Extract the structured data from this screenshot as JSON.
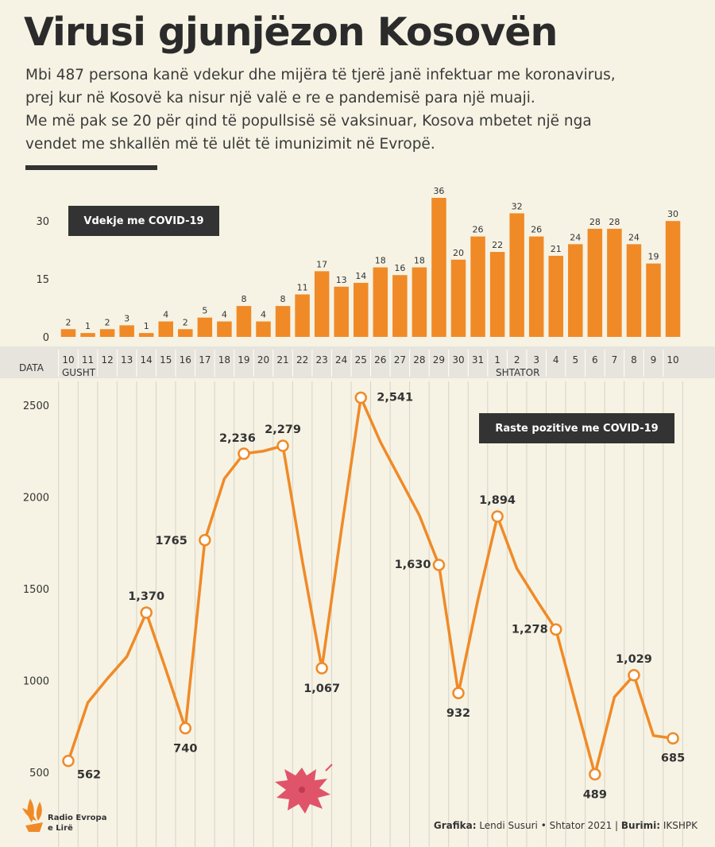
{
  "header": {
    "title": "Virusi gjunjëzon Kosovën",
    "subtitle_lines": [
      "Mbi 487 persona kanë vdekur dhe mijëra të tjerë janë infektuar me koronavirus,",
      "prej kur në Kosovë ka nisur një valë e re e pandemisë para një muaji.",
      "Me më pak se 20 për qind të popullsisë së vaksinuar, Kosova mbetet një nga",
      "vendet me shkallën më të ulët të imunizimit në Evropë."
    ]
  },
  "colors": {
    "orange": "#f08a27",
    "dark": "#333333",
    "axis_band": "#e6e4dc",
    "background": "#f6f3e4"
  },
  "date_axis": {
    "label": "DATA",
    "dates": [
      "10",
      "11",
      "12",
      "13",
      "14",
      "15",
      "16",
      "17",
      "18",
      "19",
      "20",
      "21",
      "22",
      "23",
      "24",
      "25",
      "26",
      "27",
      "28",
      "29",
      "30",
      "31",
      "1",
      "2",
      "3",
      "4",
      "5",
      "6",
      "7",
      "8",
      "9",
      "10"
    ],
    "month_labels": [
      "GUSHT",
      "SHTATOR"
    ]
  },
  "chart_data": [
    {
      "type": "bar",
      "legend": "Vdekje me COVID-19",
      "categories": [
        "10",
        "11",
        "12",
        "13",
        "14",
        "15",
        "16",
        "17",
        "18",
        "19",
        "20",
        "21",
        "22",
        "23",
        "24",
        "25",
        "26",
        "27",
        "28",
        "29",
        "30",
        "31",
        "1",
        "2",
        "3",
        "4",
        "5",
        "6",
        "7",
        "8",
        "9",
        "10"
      ],
      "values": [
        2,
        1,
        2,
        3,
        1,
        4,
        2,
        5,
        4,
        8,
        4,
        8,
        11,
        17,
        13,
        14,
        18,
        16,
        18,
        36,
        20,
        26,
        22,
        32,
        26,
        21,
        24,
        28,
        28,
        24,
        19,
        30
      ],
      "yticks": [
        0,
        15,
        30
      ],
      "ylim": [
        0,
        36
      ],
      "grid": false
    },
    {
      "type": "line",
      "legend": "Raste pozitive me COVID-19",
      "categories": [
        "10",
        "11",
        "12",
        "13",
        "14",
        "15",
        "16",
        "17",
        "18",
        "19",
        "20",
        "21",
        "22",
        "23",
        "24",
        "25",
        "26",
        "27",
        "28",
        "29",
        "30",
        "31",
        "1",
        "2",
        "3",
        "4",
        "5",
        "6",
        "7",
        "8",
        "9",
        "10"
      ],
      "values": [
        562,
        880,
        1010,
        1130,
        1370,
        1060,
        740,
        1765,
        2100,
        2236,
        2250,
        2279,
        1650,
        1067,
        1820,
        2541,
        2300,
        2100,
        1900,
        1630,
        932,
        1440,
        1894,
        1610,
        1440,
        1278,
        880,
        489,
        910,
        1029,
        700,
        685
      ],
      "point_labels": [
        {
          "index": 0,
          "text": "562"
        },
        {
          "index": 4,
          "text": "1,370"
        },
        {
          "index": 6,
          "text": "740"
        },
        {
          "index": 7,
          "text": "1765"
        },
        {
          "index": 9,
          "text": "2,236"
        },
        {
          "index": 11,
          "text": "2,279"
        },
        {
          "index": 13,
          "text": "1,067"
        },
        {
          "index": 15,
          "text": "2,541"
        },
        {
          "index": 19,
          "text": "1,630"
        },
        {
          "index": 20,
          "text": "932"
        },
        {
          "index": 22,
          "text": "1,894"
        },
        {
          "index": 25,
          "text": "1,278"
        },
        {
          "index": 27,
          "text": "489"
        },
        {
          "index": 29,
          "text": "1,029"
        },
        {
          "index": 31,
          "text": "685"
        }
      ],
      "yticks": [
        500,
        1000,
        1500,
        2000,
        2500
      ],
      "ylim": [
        400,
        2600
      ],
      "grid": "vertical"
    }
  ],
  "footer": {
    "logo_lines": [
      "Radio Evropa",
      "e Lirë"
    ],
    "credit_label_1": "Grafika:",
    "credit_value_1": " Lendi Susuri • Shtator 2021 | ",
    "credit_label_2": "Burimi:",
    "credit_value_2": " IKSHPK"
  }
}
